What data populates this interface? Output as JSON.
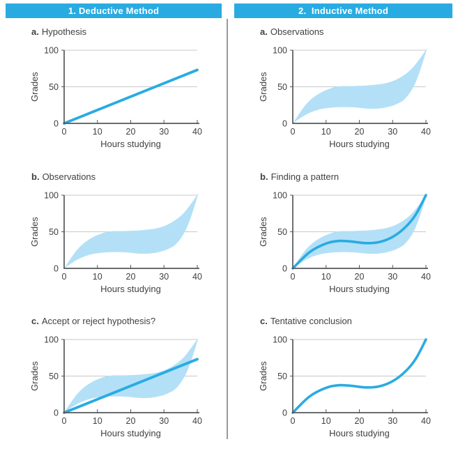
{
  "colors": {
    "accent": "#29ABE2",
    "band": "#B3E0F7",
    "axis": "#55565A",
    "grid": "#C8C9CB",
    "text": "#414042",
    "divider": "#97999C",
    "header_text": "#FFFFFF",
    "background": "#FFFFFF"
  },
  "headers": [
    {
      "label": "1. Deductive Method"
    },
    {
      "label": "2.  Inductive Method"
    }
  ],
  "chart_data": {
    "axes_default": {
      "xlabel": "Hours studying",
      "ylabel": "Grades",
      "xlim": [
        0,
        40
      ],
      "ylim": [
        0,
        100
      ],
      "x_ticks": [
        0,
        10,
        20,
        30,
        40
      ],
      "y_ticks": [
        0,
        50,
        100
      ],
      "gridlines_y": [
        50,
        100
      ],
      "grid": true,
      "legend": false
    },
    "band_region": {
      "name": "observed-grades-range",
      "upper": [
        [
          0,
          0
        ],
        [
          4,
          26
        ],
        [
          8,
          41
        ],
        [
          13,
          50
        ],
        [
          18,
          51
        ],
        [
          23,
          52
        ],
        [
          28,
          55
        ],
        [
          32,
          62
        ],
        [
          36,
          76
        ],
        [
          40,
          100
        ]
      ],
      "lower": [
        [
          0,
          0
        ],
        [
          4,
          12
        ],
        [
          8,
          19
        ],
        [
          13,
          22
        ],
        [
          18,
          22
        ],
        [
          23,
          20
        ],
        [
          27,
          21
        ],
        [
          31,
          26
        ],
        [
          34,
          35
        ],
        [
          37,
          57
        ],
        [
          40,
          97
        ]
      ]
    },
    "pattern_curve": {
      "name": "fitted-pattern-curve",
      "points": [
        [
          0,
          0
        ],
        [
          5,
          22
        ],
        [
          10,
          34
        ],
        [
          14,
          37.5
        ],
        [
          18,
          36.5
        ],
        [
          22,
          34.5
        ],
        [
          26,
          36
        ],
        [
          30,
          43
        ],
        [
          34,
          57
        ],
        [
          37,
          74
        ],
        [
          40,
          100
        ]
      ]
    },
    "charts": [
      {
        "column": "deductive",
        "label_letter": "a.",
        "label_text": "Hypothesis",
        "type": "line",
        "series": [
          {
            "kind": "line",
            "name": "hypothesis-line",
            "points": [
              [
                0,
                0
              ],
              [
                40,
                73
              ]
            ]
          }
        ]
      },
      {
        "column": "deductive",
        "label_letter": "b.",
        "label_text": "Observations",
        "type": "area",
        "series": [
          {
            "kind": "band",
            "ref": "band_region"
          }
        ]
      },
      {
        "column": "deductive",
        "label_letter": "c.",
        "label_text": "Accept or reject hypothesis?",
        "type": "area+line",
        "series": [
          {
            "kind": "band",
            "ref": "band_region"
          },
          {
            "kind": "line",
            "name": "hypothesis-line",
            "points": [
              [
                0,
                0
              ],
              [
                40,
                73
              ]
            ]
          }
        ]
      },
      {
        "column": "inductive",
        "label_letter": "a.",
        "label_text": "Observations",
        "type": "area",
        "series": [
          {
            "kind": "band",
            "ref": "band_region"
          }
        ]
      },
      {
        "column": "inductive",
        "label_letter": "b.",
        "label_text": "Finding a pattern",
        "type": "area+line",
        "series": [
          {
            "kind": "band",
            "ref": "band_region"
          },
          {
            "kind": "curve",
            "ref": "pattern_curve"
          }
        ]
      },
      {
        "column": "inductive",
        "label_letter": "c.",
        "label_text": "Tentative conclusion",
        "type": "line",
        "series": [
          {
            "kind": "curve",
            "ref": "pattern_curve"
          }
        ]
      }
    ]
  }
}
